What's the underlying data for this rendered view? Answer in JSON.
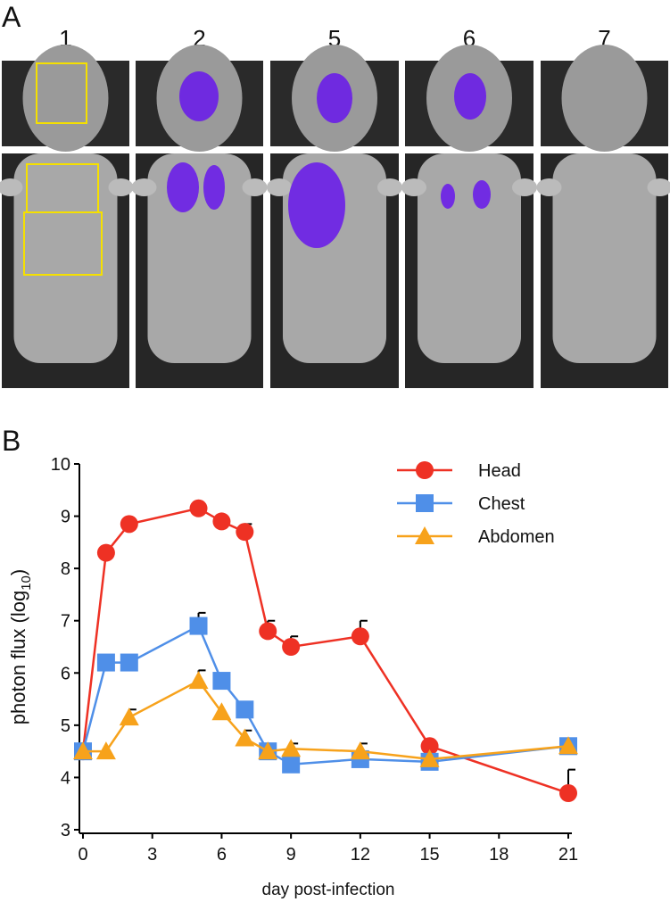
{
  "panels": [
    "A",
    "B"
  ],
  "image_labels": [
    "1",
    "2",
    "5",
    "6",
    "7"
  ],
  "chart_data": {
    "type": "line",
    "x_label": "day post-infection",
    "y_label": [
      "photon flux (log",
      "10",
      ")"
    ],
    "x": [
      0,
      1,
      2,
      5,
      6,
      7,
      8,
      9,
      12,
      15,
      21
    ],
    "xlim": [
      0,
      21
    ],
    "xticks": [
      0,
      3,
      6,
      9,
      12,
      15,
      18,
      21
    ],
    "ylim": [
      3,
      10
    ],
    "yticks": [
      3,
      4,
      5,
      6,
      7,
      8,
      9,
      10
    ],
    "legend": "upper right",
    "series": [
      {
        "name": "Head",
        "color": "#ee3124",
        "marker": "circle",
        "values": [
          4.5,
          8.3,
          8.85,
          9.15,
          8.9,
          8.7,
          6.8,
          6.5,
          6.7,
          4.6,
          3.7
        ],
        "errors": [
          null,
          null,
          null,
          null,
          null,
          0.15,
          0.2,
          0.2,
          0.3,
          null,
          0.45
        ]
      },
      {
        "name": "Chest",
        "color": "#4f8fe8",
        "marker": "square",
        "values": [
          4.5,
          6.2,
          6.2,
          6.9,
          5.85,
          5.3,
          4.5,
          4.25,
          4.35,
          4.3,
          4.6
        ],
        "errors": [
          null,
          null,
          null,
          0.25,
          null,
          null,
          null,
          null,
          null,
          null,
          null
        ]
      },
      {
        "name": "Abdomen",
        "color": "#f7a21b",
        "marker": "triangle",
        "values": [
          4.5,
          4.5,
          5.15,
          5.85,
          5.25,
          4.75,
          4.5,
          4.55,
          4.5,
          4.35,
          4.6
        ],
        "errors": [
          null,
          null,
          0.15,
          0.2,
          null,
          0.15,
          null,
          0.1,
          0.15,
          null,
          null
        ]
      }
    ]
  }
}
